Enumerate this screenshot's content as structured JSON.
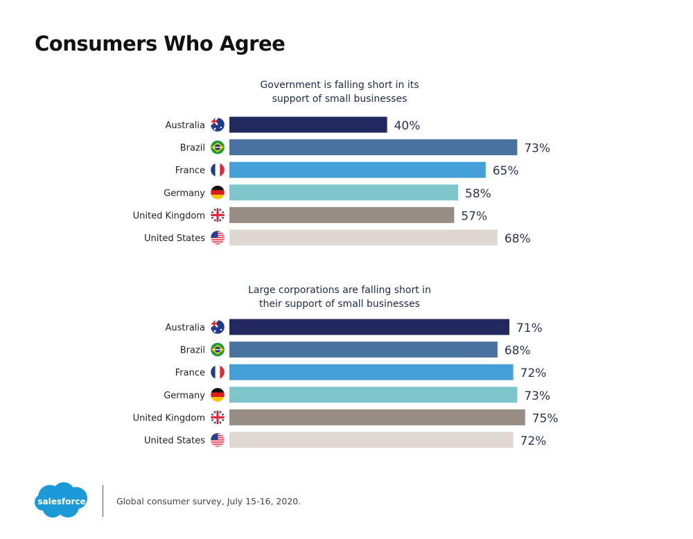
{
  "title": "Consumers Who Agree",
  "colors": [
    "#22295e",
    "#4a72a0",
    "#45a0d8",
    "#7fc5cc",
    "#978d84",
    "#dfd7d1"
  ],
  "chart_data": [
    {
      "type": "bar",
      "orientation": "horizontal",
      "title": "Government is falling short in its support of small businesses",
      "title_lines": [
        "Government is falling short in its",
        "support of small businesses"
      ],
      "categories": [
        "Australia",
        "Brazil",
        "France",
        "Germany",
        "United Kingdom",
        "United States"
      ],
      "values": [
        40,
        73,
        65,
        58,
        57,
        68
      ],
      "labels": [
        "40%",
        "73%",
        "65%",
        "58%",
        "57%",
        "68%"
      ],
      "unit": "%",
      "xlim": [
        0,
        100
      ],
      "grid": false,
      "legend": "none"
    },
    {
      "type": "bar",
      "orientation": "horizontal",
      "title": "Large corporations are falling short in their support of small businesses",
      "title_lines": [
        "Large corporations are falling short in",
        "their support of small businesses"
      ],
      "categories": [
        "Australia",
        "Brazil",
        "France",
        "Germany",
        "United Kingdom",
        "United States"
      ],
      "values": [
        71,
        68,
        72,
        73,
        75,
        72
      ],
      "labels": [
        "71%",
        "68%",
        "72%",
        "73%",
        "75%",
        "72%"
      ],
      "unit": "%",
      "xlim": [
        0,
        100
      ],
      "grid": false,
      "legend": "none"
    }
  ],
  "flags": [
    "australia-flag-icon",
    "brazil-flag-icon",
    "france-flag-icon",
    "germany-flag-icon",
    "united-kingdom-flag-icon",
    "united-states-flag-icon"
  ],
  "footer": {
    "logo_text": "salesforce",
    "note": "Global consumer survey, July 15-16, 2020."
  }
}
